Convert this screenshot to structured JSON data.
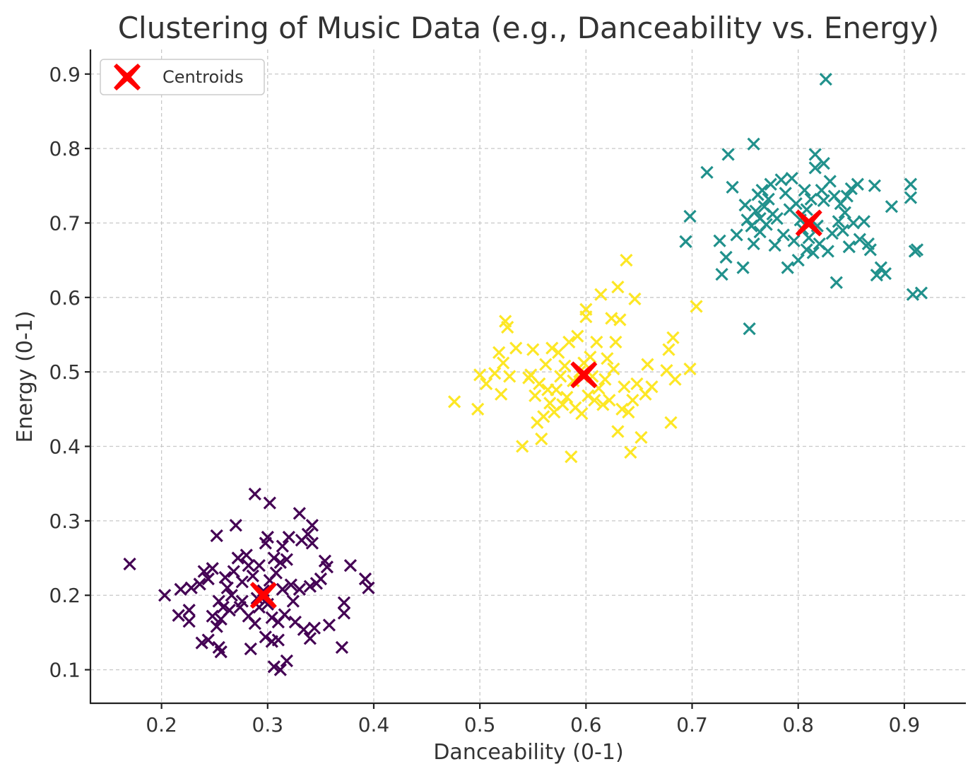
{
  "chart_data": {
    "type": "scatter",
    "title": "Clustering of Music Data (e.g., Danceability vs. Energy)",
    "xlabel": "Danceability (0-1)",
    "ylabel": "Energy (0-1)",
    "xlim": [
      0.133,
      0.958
    ],
    "ylim": [
      0.055,
      0.933
    ],
    "xticks": [
      "0.2",
      "0.3",
      "0.4",
      "0.5",
      "0.6",
      "0.7",
      "0.8",
      "0.9"
    ],
    "yticks": [
      "0.1",
      "0.2",
      "0.3",
      "0.4",
      "0.5",
      "0.6",
      "0.7",
      "0.8",
      "0.9"
    ],
    "grid": true,
    "marker": "x",
    "legend": {
      "position": "top-left",
      "entries": [
        "Centroids"
      ]
    },
    "colors": {
      "cluster_low": "#440154",
      "cluster_mid": "#21918c",
      "cluster_high": "#fde725",
      "centroid": "#ff0000"
    },
    "series": [
      {
        "color": "#440154",
        "points": [
          [
            0.17,
            0.242
          ],
          [
            0.203,
            0.2
          ],
          [
            0.218,
            0.208
          ],
          [
            0.216,
            0.173
          ],
          [
            0.226,
            0.165
          ],
          [
            0.226,
            0.18
          ],
          [
            0.228,
            0.21
          ],
          [
            0.236,
            0.215
          ],
          [
            0.238,
            0.136
          ],
          [
            0.24,
            0.232
          ],
          [
            0.244,
            0.14
          ],
          [
            0.244,
            0.222
          ],
          [
            0.248,
            0.236
          ],
          [
            0.248,
            0.172
          ],
          [
            0.252,
            0.158
          ],
          [
            0.252,
            0.28
          ],
          [
            0.254,
            0.192
          ],
          [
            0.254,
            0.13
          ],
          [
            0.256,
            0.124
          ],
          [
            0.256,
            0.168
          ],
          [
            0.258,
            0.184
          ],
          [
            0.26,
            0.224
          ],
          [
            0.262,
            0.21
          ],
          [
            0.264,
            0.18
          ],
          [
            0.266,
            0.2
          ],
          [
            0.268,
            0.232
          ],
          [
            0.27,
            0.294
          ],
          [
            0.272,
            0.25
          ],
          [
            0.274,
            0.184
          ],
          [
            0.276,
            0.218
          ],
          [
            0.276,
            0.192
          ],
          [
            0.28,
            0.254
          ],
          [
            0.282,
            0.24
          ],
          [
            0.282,
            0.172
          ],
          [
            0.284,
            0.128
          ],
          [
            0.286,
            0.226
          ],
          [
            0.288,
            0.162
          ],
          [
            0.288,
            0.336
          ],
          [
            0.29,
            0.196
          ],
          [
            0.292,
            0.184
          ],
          [
            0.292,
            0.24
          ],
          [
            0.296,
            0.206
          ],
          [
            0.298,
            0.27
          ],
          [
            0.298,
            0.144
          ],
          [
            0.3,
            0.278
          ],
          [
            0.3,
            0.188
          ],
          [
            0.302,
            0.324
          ],
          [
            0.302,
            0.22
          ],
          [
            0.304,
            0.138
          ],
          [
            0.304,
            0.17
          ],
          [
            0.306,
            0.104
          ],
          [
            0.306,
            0.25
          ],
          [
            0.308,
            0.23
          ],
          [
            0.31,
            0.164
          ],
          [
            0.31,
            0.14
          ],
          [
            0.312,
            0.1
          ],
          [
            0.312,
            0.244
          ],
          [
            0.314,
            0.266
          ],
          [
            0.314,
            0.208
          ],
          [
            0.316,
            0.174
          ],
          [
            0.318,
            0.248
          ],
          [
            0.318,
            0.112
          ],
          [
            0.32,
            0.278
          ],
          [
            0.322,
            0.214
          ],
          [
            0.324,
            0.192
          ],
          [
            0.326,
            0.164
          ],
          [
            0.33,
            0.208
          ],
          [
            0.33,
            0.31
          ],
          [
            0.332,
            0.274
          ],
          [
            0.334,
            0.154
          ],
          [
            0.338,
            0.282
          ],
          [
            0.34,
            0.212
          ],
          [
            0.34,
            0.142
          ],
          [
            0.342,
            0.27
          ],
          [
            0.342,
            0.294
          ],
          [
            0.344,
            0.156
          ],
          [
            0.346,
            0.216
          ],
          [
            0.35,
            0.222
          ],
          [
            0.354,
            0.246
          ],
          [
            0.356,
            0.238
          ],
          [
            0.358,
            0.16
          ],
          [
            0.37,
            0.13
          ],
          [
            0.372,
            0.19
          ],
          [
            0.372,
            0.176
          ],
          [
            0.378,
            0.24
          ],
          [
            0.392,
            0.222
          ],
          [
            0.395,
            0.21
          ]
        ]
      },
      {
        "color": "#21918c",
        "points": [
          [
            0.694,
            0.675
          ],
          [
            0.698,
            0.709
          ],
          [
            0.714,
            0.768
          ],
          [
            0.726,
            0.676
          ],
          [
            0.728,
            0.631
          ],
          [
            0.732,
            0.654
          ],
          [
            0.734,
            0.792
          ],
          [
            0.738,
            0.748
          ],
          [
            0.742,
            0.684
          ],
          [
            0.748,
            0.64
          ],
          [
            0.75,
            0.724
          ],
          [
            0.752,
            0.704
          ],
          [
            0.754,
            0.558
          ],
          [
            0.756,
            0.696
          ],
          [
            0.758,
            0.806
          ],
          [
            0.758,
            0.672
          ],
          [
            0.76,
            0.716
          ],
          [
            0.762,
            0.738
          ],
          [
            0.764,
            0.688
          ],
          [
            0.764,
            0.706
          ],
          [
            0.766,
            0.744
          ],
          [
            0.768,
            0.722
          ],
          [
            0.77,
            0.698
          ],
          [
            0.772,
            0.732
          ],
          [
            0.774,
            0.752
          ],
          [
            0.776,
            0.712
          ],
          [
            0.778,
            0.67
          ],
          [
            0.78,
            0.706
          ],
          [
            0.784,
            0.758
          ],
          [
            0.786,
            0.684
          ],
          [
            0.788,
            0.74
          ],
          [
            0.79,
            0.64
          ],
          [
            0.792,
            0.718
          ],
          [
            0.794,
            0.76
          ],
          [
            0.796,
            0.676
          ],
          [
            0.798,
            0.726
          ],
          [
            0.8,
            0.65
          ],
          [
            0.802,
            0.704
          ],
          [
            0.804,
            0.692
          ],
          [
            0.806,
            0.744
          ],
          [
            0.808,
            0.664
          ],
          [
            0.808,
            0.718
          ],
          [
            0.81,
            0.68
          ],
          [
            0.812,
            0.732
          ],
          [
            0.814,
            0.66
          ],
          [
            0.816,
            0.774
          ],
          [
            0.816,
            0.792
          ],
          [
            0.818,
            0.696
          ],
          [
            0.82,
            0.672
          ],
          [
            0.822,
            0.744
          ],
          [
            0.824,
            0.78
          ],
          [
            0.824,
            0.73
          ],
          [
            0.826,
            0.893
          ],
          [
            0.828,
            0.662
          ],
          [
            0.83,
            0.756
          ],
          [
            0.832,
            0.686
          ],
          [
            0.834,
            0.736
          ],
          [
            0.836,
            0.62
          ],
          [
            0.838,
            0.702
          ],
          [
            0.84,
            0.726
          ],
          [
            0.842,
            0.69
          ],
          [
            0.844,
            0.714
          ],
          [
            0.846,
            0.736
          ],
          [
            0.848,
            0.668
          ],
          [
            0.85,
            0.746
          ],
          [
            0.852,
            0.7
          ],
          [
            0.856,
            0.752
          ],
          [
            0.858,
            0.678
          ],
          [
            0.862,
            0.702
          ],
          [
            0.866,
            0.672
          ],
          [
            0.868,
            0.664
          ],
          [
            0.872,
            0.75
          ],
          [
            0.874,
            0.63
          ],
          [
            0.878,
            0.64
          ],
          [
            0.882,
            0.632
          ],
          [
            0.888,
            0.722
          ],
          [
            0.906,
            0.752
          ],
          [
            0.906,
            0.734
          ],
          [
            0.908,
            0.604
          ],
          [
            0.91,
            0.662
          ],
          [
            0.912,
            0.664
          ],
          [
            0.916,
            0.606
          ]
        ]
      },
      {
        "color": "#fde725",
        "points": [
          [
            0.476,
            0.46
          ],
          [
            0.498,
            0.45
          ],
          [
            0.5,
            0.496
          ],
          [
            0.506,
            0.484
          ],
          [
            0.514,
            0.498
          ],
          [
            0.518,
            0.526
          ],
          [
            0.52,
            0.47
          ],
          [
            0.522,
            0.512
          ],
          [
            0.524,
            0.568
          ],
          [
            0.526,
            0.56
          ],
          [
            0.528,
            0.494
          ],
          [
            0.534,
            0.532
          ],
          [
            0.54,
            0.4
          ],
          [
            0.546,
            0.492
          ],
          [
            0.548,
            0.496
          ],
          [
            0.55,
            0.53
          ],
          [
            0.552,
            0.468
          ],
          [
            0.554,
            0.432
          ],
          [
            0.556,
            0.484
          ],
          [
            0.558,
            0.41
          ],
          [
            0.56,
            0.44
          ],
          [
            0.562,
            0.51
          ],
          [
            0.564,
            0.476
          ],
          [
            0.566,
            0.458
          ],
          [
            0.568,
            0.532
          ],
          [
            0.57,
            0.446
          ],
          [
            0.572,
            0.476
          ],
          [
            0.574,
            0.526
          ],
          [
            0.576,
            0.494
          ],
          [
            0.578,
            0.456
          ],
          [
            0.58,
            0.508
          ],
          [
            0.582,
            0.466
          ],
          [
            0.584,
            0.54
          ],
          [
            0.586,
            0.386
          ],
          [
            0.588,
            0.488
          ],
          [
            0.59,
            0.452
          ],
          [
            0.592,
            0.548
          ],
          [
            0.594,
            0.5
          ],
          [
            0.596,
            0.444
          ],
          [
            0.598,
            0.512
          ],
          [
            0.6,
            0.574
          ],
          [
            0.6,
            0.584
          ],
          [
            0.602,
            0.468
          ],
          [
            0.604,
            0.52
          ],
          [
            0.606,
            0.494
          ],
          [
            0.608,
            0.462
          ],
          [
            0.61,
            0.54
          ],
          [
            0.612,
            0.478
          ],
          [
            0.614,
            0.604
          ],
          [
            0.616,
            0.456
          ],
          [
            0.618,
            0.49
          ],
          [
            0.62,
            0.518
          ],
          [
            0.622,
            0.462
          ],
          [
            0.624,
            0.572
          ],
          [
            0.626,
            0.504
          ],
          [
            0.628,
            0.54
          ],
          [
            0.63,
            0.614
          ],
          [
            0.63,
            0.42
          ],
          [
            0.632,
            0.57
          ],
          [
            0.634,
            0.45
          ],
          [
            0.636,
            0.48
          ],
          [
            0.638,
            0.65
          ],
          [
            0.64,
            0.446
          ],
          [
            0.642,
            0.392
          ],
          [
            0.644,
            0.462
          ],
          [
            0.646,
            0.598
          ],
          [
            0.648,
            0.484
          ],
          [
            0.652,
            0.412
          ],
          [
            0.656,
            0.47
          ],
          [
            0.658,
            0.51
          ],
          [
            0.662,
            0.48
          ],
          [
            0.676,
            0.502
          ],
          [
            0.678,
            0.53
          ],
          [
            0.68,
            0.432
          ],
          [
            0.682,
            0.546
          ],
          [
            0.684,
            0.49
          ],
          [
            0.698,
            0.504
          ],
          [
            0.704,
            0.588
          ]
        ]
      }
    ],
    "centroids": {
      "name": "Centroids",
      "color": "#ff0000",
      "points": [
        [
          0.296,
          0.2
        ],
        [
          0.598,
          0.496
        ],
        [
          0.81,
          0.7
        ]
      ]
    }
  }
}
